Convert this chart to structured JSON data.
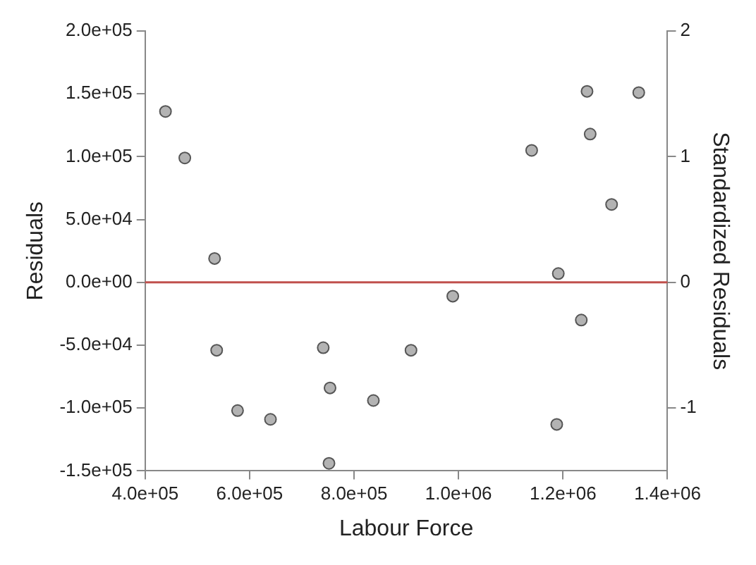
{
  "chart_data": {
    "type": "scatter",
    "xlabel": "Labour Force",
    "ylabel": "Residuals",
    "y2label": "Standardized Residuals",
    "x": [
      439000,
      476000,
      533000,
      537000,
      577000,
      640000,
      741000,
      754000,
      752000,
      837000,
      909000,
      989000,
      1140000,
      1191000,
      1188000,
      1235000,
      1246000,
      1252000,
      1293000,
      1345000
    ],
    "series": [
      {
        "color": "#b3b3b3",
        "values": [
          136000,
          99000,
          19000,
          -54000,
          -102000,
          -109000,
          -52000,
          -84000,
          -144000,
          -94000,
          -54000,
          -11000,
          105000,
          7000,
          -113000,
          -30000,
          152000,
          118000,
          62000,
          151000
        ]
      }
    ],
    "marker": "circle",
    "grid": false,
    "xlim": [
      400000,
      1400000
    ],
    "xticks": [
      {
        "value": 400000,
        "label": "4.0e+05"
      },
      {
        "value": 600000,
        "label": "6.0e+05"
      },
      {
        "value": 800000,
        "label": "8.0e+05"
      },
      {
        "value": 1000000,
        "label": "1.0e+06"
      },
      {
        "value": 1200000,
        "label": "1.2e+06"
      },
      {
        "value": 1400000,
        "label": "1.4e+06"
      }
    ],
    "ylim": [
      -150000,
      200000
    ],
    "yticks": [
      {
        "value": -150000,
        "label": "-1.5e+05"
      },
      {
        "value": -100000,
        "label": "-1.0e+05"
      },
      {
        "value": -50000,
        "label": "-5.0e+04"
      },
      {
        "value": 0,
        "label": "0.0e+00"
      },
      {
        "value": 50000,
        "label": "5.0e+04"
      },
      {
        "value": 100000,
        "label": "1.0e+05"
      },
      {
        "value": 150000,
        "label": "1.5e+05"
      },
      {
        "value": 200000,
        "label": "2.0e+05"
      }
    ],
    "y2lim": [
      -1.5,
      2.0
    ],
    "y2ticks": [
      -1,
      0,
      1,
      2
    ],
    "ref_lines": [
      {
        "axis": "y",
        "value": 0,
        "color": "#c0504d"
      }
    ]
  }
}
